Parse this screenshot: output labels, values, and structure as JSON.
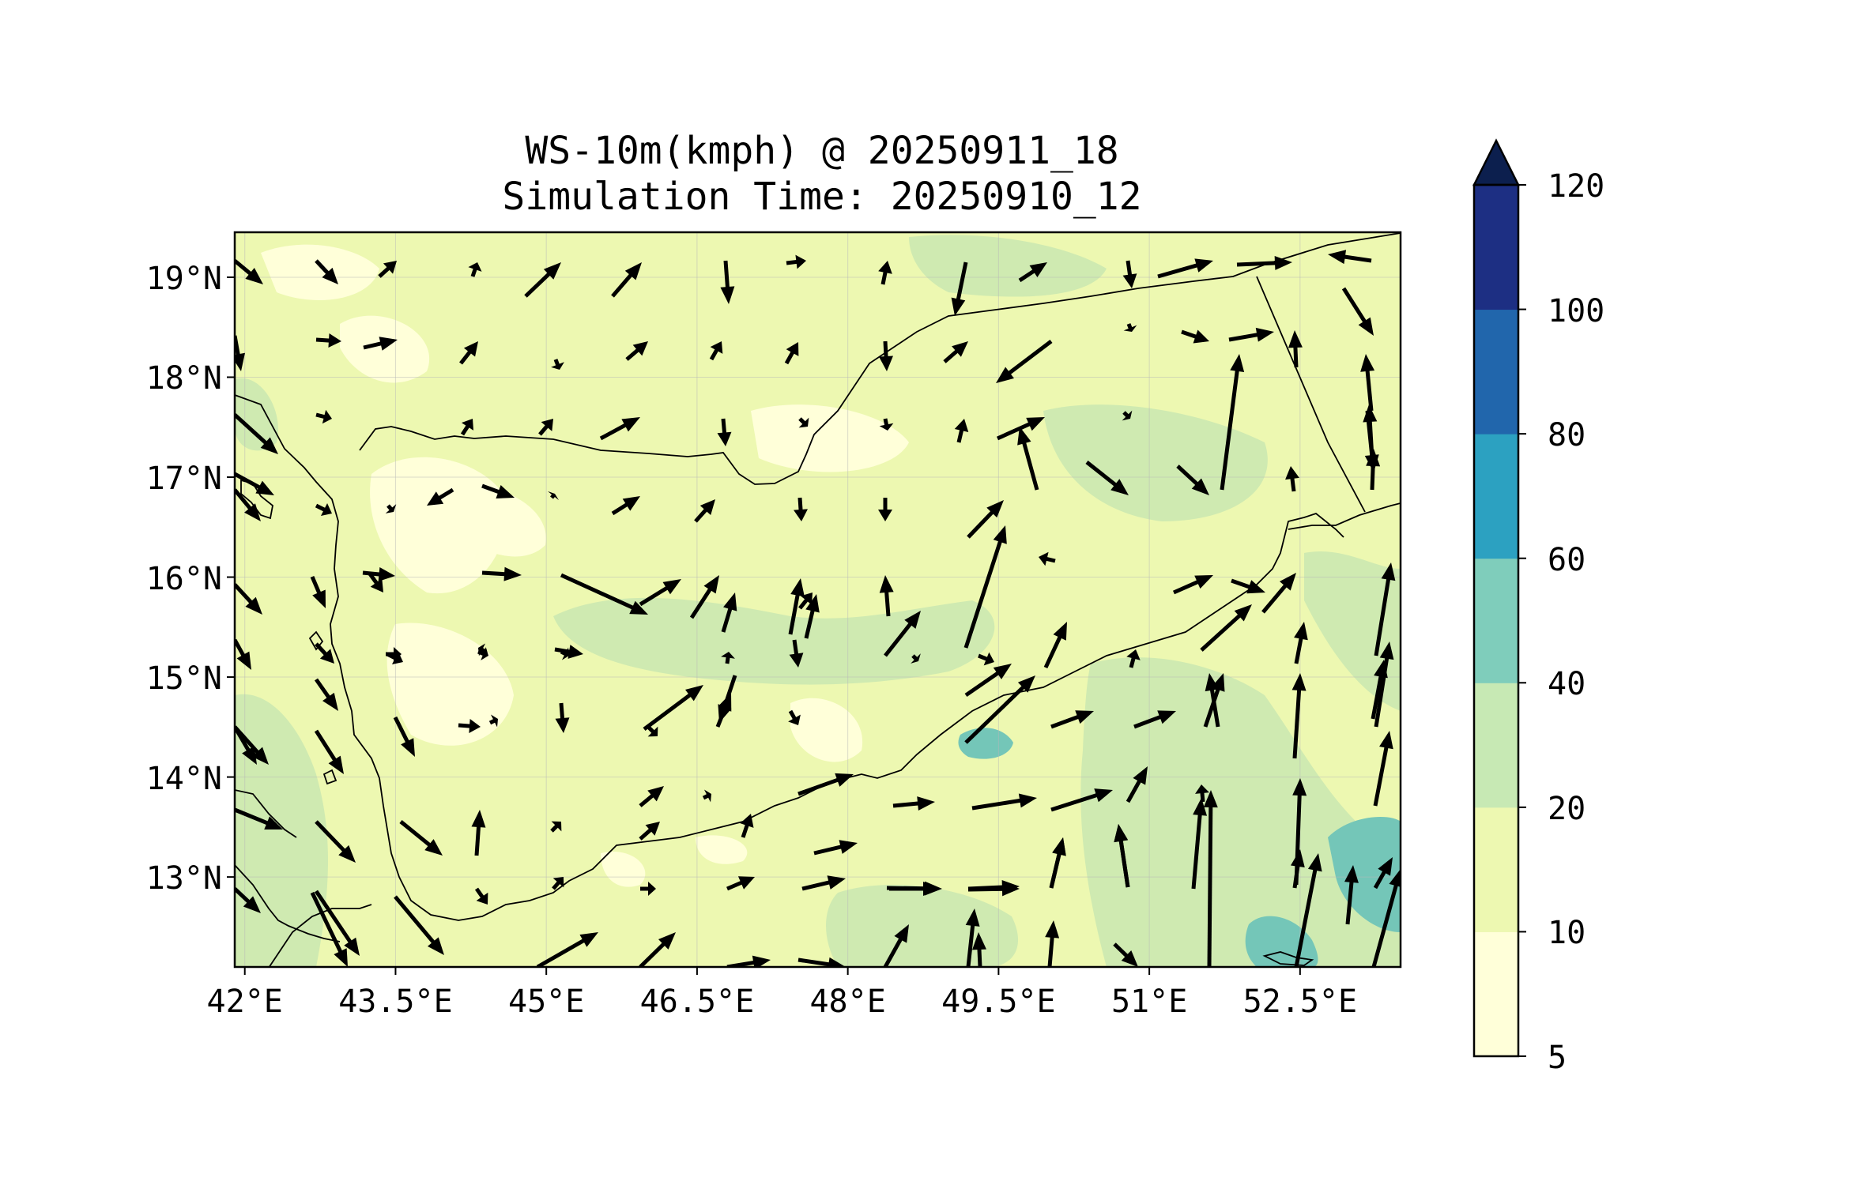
{
  "title": {
    "line1": "WS-10m(kmph) @ 20250911_18",
    "line2": "Simulation Time: 20250910_12"
  },
  "map": {
    "x_ticks": [
      "42°E",
      "43.5°E",
      "45°E",
      "46.5°E",
      "48°E",
      "49.5°E",
      "51°E",
      "52.5°E"
    ],
    "y_ticks": [
      "19°N",
      "18°N",
      "17°N",
      "16°N",
      "15°N",
      "14°N",
      "13°N"
    ],
    "lon_range": [
      41.9,
      53.5
    ],
    "lat_range": [
      12.1,
      19.45
    ],
    "grid": true
  },
  "colorbar": {
    "ticks": [
      "5",
      "10",
      "20",
      "40",
      "60",
      "80",
      "100",
      "120"
    ],
    "levels": [
      5,
      10,
      20,
      40,
      60,
      80,
      100,
      120
    ],
    "colors": [
      "#ffffd9",
      "#edf8b1",
      "#c7e9b4",
      "#7fcdbb",
      "#2ca1c1",
      "#2166ac",
      "#1d2f83"
    ],
    "extend_color": "#0c1f4e"
  },
  "fill_colors": {
    "background": "#edf8b1",
    "light": "#ffffd9",
    "medium": "#cfeab1",
    "strong": "#74c6b8"
  }
}
